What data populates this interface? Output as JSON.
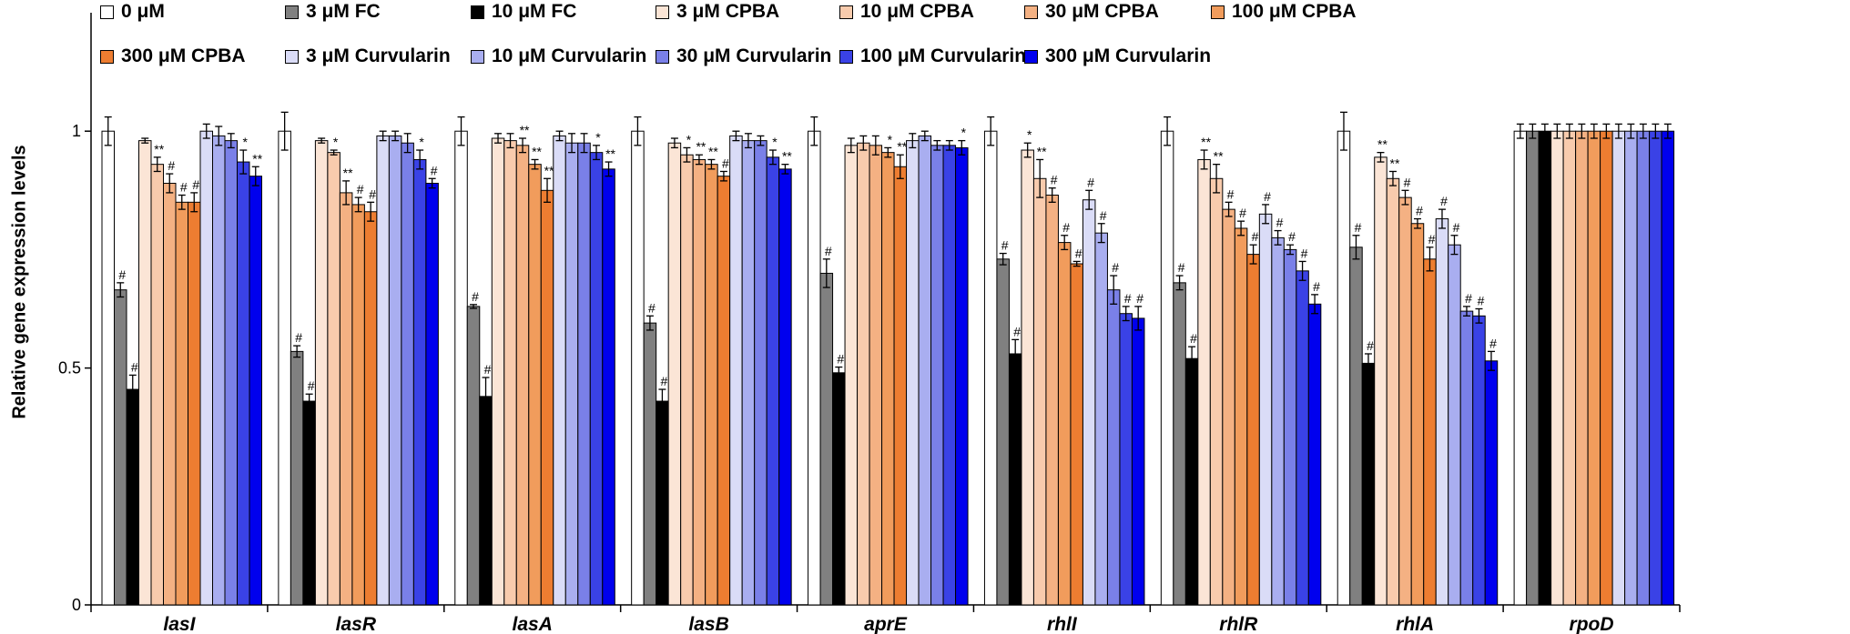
{
  "chart_data": {
    "type": "bar",
    "title": "",
    "xlabel": "",
    "ylabel": "Relative gene expression levels",
    "ylim": [
      0,
      1.25
    ],
    "yticks": [
      0,
      0.5,
      1
    ],
    "ytick_labels": [
      "0",
      "0.5",
      "1"
    ],
    "categories": [
      "lasI",
      "lasR",
      "lasA",
      "lasB",
      "aprE",
      "rhlI",
      "rhlR",
      "rhlA",
      "rpoD"
    ],
    "series": [
      {
        "name": "0 μM",
        "color": "#ffffff",
        "values": [
          1.0,
          1.0,
          1.0,
          1.0,
          1.0,
          1.0,
          1.0,
          1.0,
          1.0
        ],
        "errors": [
          0.03,
          0.04,
          0.03,
          0.03,
          0.03,
          0.03,
          0.03,
          0.04,
          0.015
        ],
        "marks": [
          "",
          "",
          "",
          "",
          "",
          "",
          "",
          "",
          ""
        ]
      },
      {
        "name": "3 μM FC",
        "color": "#808080",
        "values": [
          0.665,
          0.535,
          0.63,
          0.595,
          0.7,
          0.73,
          0.68,
          0.755,
          1.0
        ],
        "errors": [
          0.015,
          0.012,
          0.004,
          0.015,
          0.03,
          0.012,
          0.015,
          0.025,
          0.015
        ],
        "marks": [
          "#",
          "#",
          "#",
          "#",
          "#",
          "#",
          "#",
          "#",
          ""
        ]
      },
      {
        "name": "10 μM FC",
        "color": "#000000",
        "values": [
          0.455,
          0.43,
          0.44,
          0.43,
          0.49,
          0.53,
          0.52,
          0.51,
          1.0
        ],
        "errors": [
          0.03,
          0.015,
          0.04,
          0.025,
          0.012,
          0.03,
          0.025,
          0.02,
          0.015
        ],
        "marks": [
          "#",
          "#",
          "#",
          "#",
          "#",
          "#",
          "#",
          "#",
          ""
        ]
      },
      {
        "name": "3 μM CPBA",
        "color": "#fbe5d6",
        "values": [
          0.98,
          0.98,
          0.985,
          0.975,
          0.97,
          0.96,
          0.94,
          0.945,
          1.0
        ],
        "errors": [
          0.005,
          0.005,
          0.01,
          0.01,
          0.015,
          0.015,
          0.02,
          0.01,
          0.015
        ],
        "marks": [
          "",
          "",
          "",
          "",
          "",
          "*",
          "**",
          "**",
          ""
        ]
      },
      {
        "name": "10 μM CPBA",
        "color": "#f8cbad",
        "values": [
          0.93,
          0.955,
          0.98,
          0.95,
          0.975,
          0.9,
          0.9,
          0.9,
          1.0
        ],
        "errors": [
          0.015,
          0.005,
          0.015,
          0.015,
          0.015,
          0.04,
          0.03,
          0.015,
          0.015
        ],
        "marks": [
          "**",
          "*",
          "",
          "*",
          "",
          "**",
          "**",
          "**",
          ""
        ]
      },
      {
        "name": "30 μM CPBA",
        "color": "#f4b183",
        "values": [
          0.89,
          0.87,
          0.97,
          0.94,
          0.97,
          0.865,
          0.835,
          0.86,
          1.0
        ],
        "errors": [
          0.02,
          0.025,
          0.015,
          0.01,
          0.02,
          0.015,
          0.015,
          0.015,
          0.015
        ],
        "marks": [
          "#",
          "**",
          "**",
          "**",
          "",
          "#",
          "#",
          "#",
          ""
        ]
      },
      {
        "name": "100 μM CPBA",
        "color": "#f19c5c",
        "values": [
          0.85,
          0.845,
          0.93,
          0.93,
          0.955,
          0.765,
          0.795,
          0.805,
          1.0
        ],
        "errors": [
          0.015,
          0.015,
          0.01,
          0.01,
          0.01,
          0.015,
          0.015,
          0.01,
          0.015
        ],
        "marks": [
          "#",
          "#",
          "**",
          "**",
          "*",
          "#",
          "#",
          "#",
          ""
        ]
      },
      {
        "name": "300 μM CPBA",
        "color": "#ed7d31",
        "values": [
          0.85,
          0.83,
          0.875,
          0.905,
          0.925,
          0.72,
          0.74,
          0.73,
          1.0
        ],
        "errors": [
          0.02,
          0.02,
          0.025,
          0.01,
          0.025,
          0.005,
          0.02,
          0.025,
          0.015
        ],
        "marks": [
          "#",
          "#",
          "**",
          "#",
          "**",
          "#",
          "#",
          "#",
          ""
        ]
      },
      {
        "name": "3 μM Curvularin",
        "color": "#dadcf7",
        "values": [
          1.0,
          0.99,
          0.99,
          0.99,
          0.98,
          0.855,
          0.825,
          0.815,
          1.0
        ],
        "errors": [
          0.015,
          0.01,
          0.01,
          0.01,
          0.015,
          0.02,
          0.02,
          0.02,
          0.015
        ],
        "marks": [
          "",
          "",
          "",
          "",
          "",
          "#",
          "#",
          "#",
          ""
        ]
      },
      {
        "name": "10 μM Curvularin",
        "color": "#a9aef0",
        "values": [
          0.99,
          0.99,
          0.975,
          0.98,
          0.99,
          0.785,
          0.775,
          0.76,
          1.0
        ],
        "errors": [
          0.02,
          0.01,
          0.02,
          0.015,
          0.01,
          0.02,
          0.015,
          0.02,
          0.015
        ],
        "marks": [
          "",
          "",
          "",
          "",
          "",
          "#",
          "#",
          "#",
          ""
        ]
      },
      {
        "name": "30 μM Curvularin",
        "color": "#7a80e8",
        "values": [
          0.98,
          0.975,
          0.975,
          0.98,
          0.97,
          0.665,
          0.75,
          0.62,
          1.0
        ],
        "errors": [
          0.015,
          0.02,
          0.02,
          0.01,
          0.01,
          0.03,
          0.01,
          0.01,
          0.015
        ],
        "marks": [
          "",
          "",
          "",
          "",
          "",
          "#",
          "#",
          "#",
          ""
        ]
      },
      {
        "name": "100 μM Curvularin",
        "color": "#3a42e6",
        "values": [
          0.935,
          0.94,
          0.955,
          0.945,
          0.97,
          0.615,
          0.705,
          0.61,
          1.0
        ],
        "errors": [
          0.025,
          0.02,
          0.015,
          0.015,
          0.01,
          0.015,
          0.02,
          0.015,
          0.015
        ],
        "marks": [
          "*",
          "*",
          "*",
          "*",
          "",
          "#",
          "#",
          "#",
          ""
        ]
      },
      {
        "name": "300 μM Curvularin",
        "color": "#0000ee",
        "values": [
          0.905,
          0.89,
          0.92,
          0.92,
          0.965,
          0.605,
          0.635,
          0.515,
          1.0
        ],
        "errors": [
          0.02,
          0.01,
          0.015,
          0.01,
          0.015,
          0.025,
          0.02,
          0.02,
          0.015
        ],
        "marks": [
          "**",
          "#",
          "**",
          "**",
          "*",
          "#",
          "#",
          "#",
          ""
        ]
      }
    ]
  }
}
